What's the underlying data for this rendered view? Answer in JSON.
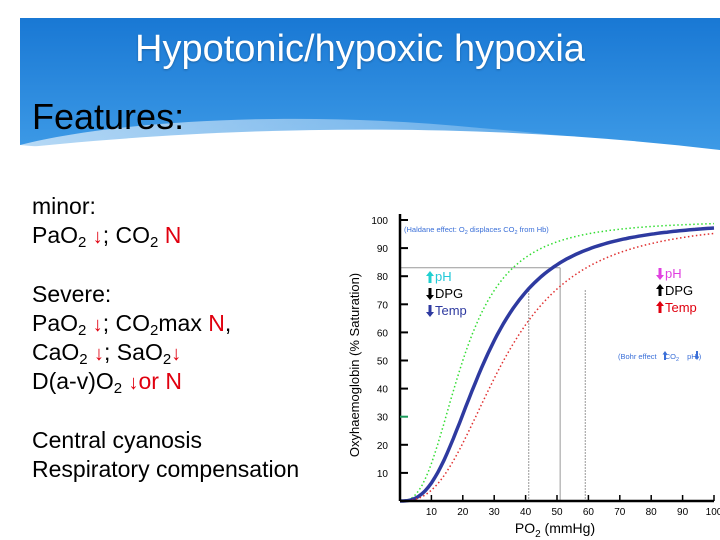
{
  "slide": {
    "title": "Hypotonic/hypoxic hypoxia",
    "subtitle": "Features:",
    "colors": {
      "banner": "#1f86dd",
      "banner_light": "#6db4f0",
      "accent_red": "#e0000f",
      "curve_blue": "#2e3aa0"
    }
  },
  "minor": {
    "heading": "minor:",
    "pao2": "PaO",
    "pao2_sub": "2",
    "pao2_arrow": "↓",
    "sep": "; CO",
    "co2_sub": "2",
    "co2_value": "N"
  },
  "severe": {
    "heading": "Severe:",
    "l1_a": "PaO",
    "l1_a_sub": "2",
    "l1_arrow": "↓",
    "l1_b": "; CO",
    "l1_b_sub": "2",
    "l1_c": "max ",
    "l1_val": "N",
    "l1_end": ",",
    "l2_a": "CaO",
    "l2_a_sub": "2",
    "l2_arrow1": "↓",
    "l2_b": "; SaO",
    "l2_b_sub": "2",
    "l2_arrow2": "↓",
    "l3_a": "D(a-v)O",
    "l3_a_sub": "2",
    "l3_arrow": "↓",
    "l3_val": "or N"
  },
  "notes": {
    "line1": "Central cyanosis",
    "line2": "Respiratory compensation"
  },
  "chart_data": {
    "type": "line",
    "xlabel": "PO",
    "xlabel_sub": "2",
    "xlabel_unit": " (mmHg)",
    "ylabel": "Oxyhaemoglobin (% Saturation)",
    "xlim": [
      0,
      100
    ],
    "ylim": [
      0,
      100
    ],
    "x_ticks": [
      10,
      20,
      30,
      40,
      50,
      60,
      70,
      80,
      90,
      100
    ],
    "y_ticks": [
      10,
      20,
      30,
      40,
      50,
      60,
      70,
      80,
      90,
      100
    ],
    "series": [
      {
        "style": "dotted",
        "color": "#33dd33",
        "p50": 20,
        "n": 2.7
      },
      {
        "style": "solid",
        "color": "#2e3aa0",
        "p50": 27,
        "n": 2.7
      },
      {
        "style": "dotted",
        "color": "#e03030",
        "p50": 33,
        "n": 2.7
      }
    ],
    "reference_lines": {
      "y": 83,
      "x": [
        41,
        51,
        59
      ]
    },
    "annotations": {
      "haldane_a": "(Haldane effect: O",
      "haldane_sub1": "2",
      "haldane_b": " displaces CO",
      "haldane_sub2": "2",
      "haldane_c": " from Hb)",
      "left_ph": "pH",
      "left_dpg": "DPG",
      "left_temp": "Temp",
      "right_ph": "pH",
      "right_dpg": "DPG",
      "right_temp": "Temp",
      "bohr_a": "(Bohr effect ",
      "bohr_b": " CO",
      "bohr_sub": "2",
      "bohr_c": " pH )"
    }
  }
}
